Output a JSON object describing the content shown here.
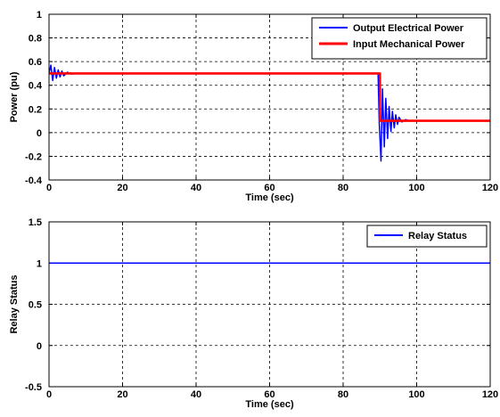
{
  "chart_data": [
    {
      "type": "line",
      "title": "",
      "xlabel": "Time (sec)",
      "ylabel": "Power (pu)",
      "xlim": [
        0,
        120
      ],
      "ylim": [
        -0.4,
        1
      ],
      "xticks": [
        0,
        20,
        40,
        60,
        80,
        100,
        120
      ],
      "yticks": [
        -0.4,
        -0.2,
        0,
        0.2,
        0.4,
        0.6,
        0.8,
        1
      ],
      "grid": true,
      "legend": "top-right",
      "series": [
        {
          "name": "Output Electrical Power",
          "color": "#0000ff",
          "x": [
            0,
            0.5,
            1,
            1.5,
            2,
            2.5,
            3,
            3.5,
            4,
            5,
            6,
            8,
            10,
            89.5,
            89.8,
            90.3,
            90.7,
            91.2,
            91.6,
            92.1,
            92.5,
            93.0,
            93.4,
            93.9,
            94.3,
            94.8,
            95.2,
            96,
            97,
            98,
            100,
            120
          ],
          "y": [
            0.5,
            0.57,
            0.44,
            0.55,
            0.46,
            0.53,
            0.47,
            0.52,
            0.48,
            0.51,
            0.495,
            0.5,
            0.5,
            0.5,
            0.1,
            -0.24,
            0.37,
            -0.12,
            0.29,
            -0.05,
            0.22,
            0.01,
            0.18,
            0.04,
            0.15,
            0.07,
            0.13,
            0.09,
            0.11,
            0.1,
            0.1,
            0.1
          ]
        },
        {
          "name": "Input Mechanical Power",
          "color": "#ff0000",
          "x": [
            0,
            90,
            90,
            120
          ],
          "y": [
            0.5,
            0.5,
            0.1,
            0.1
          ]
        }
      ]
    },
    {
      "type": "line",
      "title": "",
      "xlabel": "Time (sec)",
      "ylabel": "Relay Status",
      "xlim": [
        0,
        120
      ],
      "ylim": [
        -0.5,
        1.5
      ],
      "xticks": [
        0,
        20,
        40,
        60,
        80,
        100,
        120
      ],
      "yticks": [
        -0.5,
        0,
        0.5,
        1,
        1.5
      ],
      "grid": true,
      "legend": "top-right",
      "series": [
        {
          "name": "Relay Status",
          "color": "#0000ff",
          "x": [
            0,
            120
          ],
          "y": [
            1,
            1
          ]
        }
      ]
    }
  ]
}
